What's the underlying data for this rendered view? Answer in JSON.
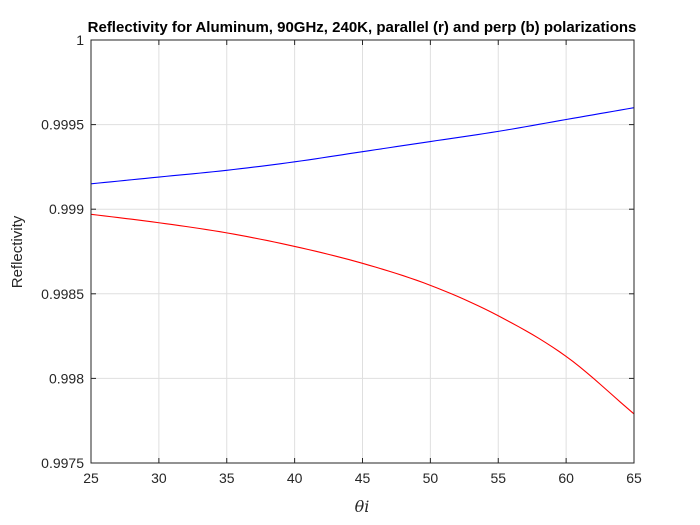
{
  "chart_data": {
    "type": "line",
    "title": "Reflectivity for Aluminum, 90GHz, 240K, parallel (r) and perp (b) polarizations",
    "xlabel": "θi",
    "ylabel": "Reflectivity",
    "xlim": [
      25,
      65
    ],
    "ylim": [
      0.9975,
      1
    ],
    "xticks": [
      25,
      30,
      35,
      40,
      45,
      50,
      55,
      60,
      65
    ],
    "xtick_labels": [
      "25",
      "30",
      "35",
      "40",
      "45",
      "50",
      "55",
      "60",
      "65"
    ],
    "yticks": [
      0.9975,
      0.998,
      0.9985,
      0.999,
      0.9995,
      1
    ],
    "ytick_labels": [
      "0.9975",
      "0.998",
      "0.9985",
      "0.999",
      "0.9995",
      "1"
    ],
    "grid": true,
    "series": [
      {
        "color": "#0000ff",
        "x": [
          25,
          30,
          35,
          40,
          45,
          50,
          55,
          60,
          65
        ],
        "y": [
          0.99915,
          0.99919,
          0.99923,
          0.99928,
          0.99934,
          0.9994,
          0.99946,
          0.99953,
          0.9996
        ]
      },
      {
        "color": "#ff0000",
        "x": [
          25,
          30,
          35,
          40,
          45,
          50,
          55,
          60,
          65
        ],
        "y": [
          0.99897,
          0.99892,
          0.99886,
          0.99878,
          0.99868,
          0.99855,
          0.99837,
          0.99813,
          0.99779
        ]
      }
    ]
  }
}
